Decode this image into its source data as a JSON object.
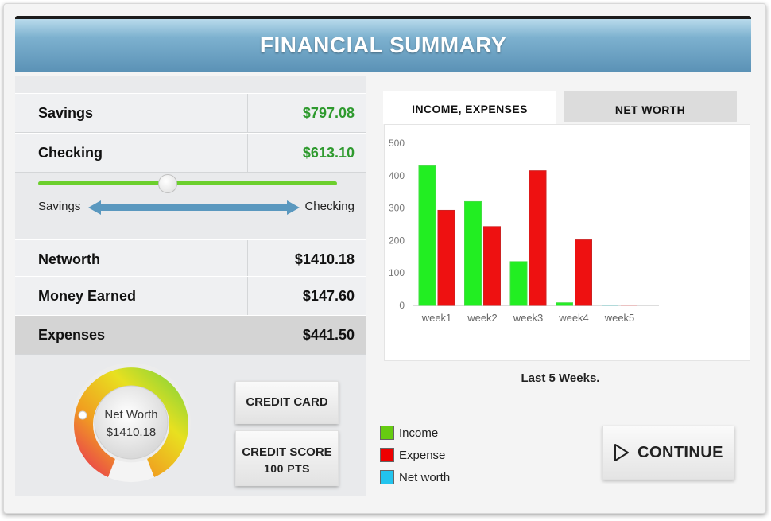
{
  "header": {
    "title": "FINANCIAL SUMMARY"
  },
  "accounts": {
    "savings": {
      "label": "Savings",
      "value": "$797.08"
    },
    "checking": {
      "label": "Checking",
      "value": "$613.10"
    }
  },
  "transfer_slider": {
    "left_label": "Savings",
    "right_label": "Checking",
    "position": 0.43
  },
  "summary": {
    "networth": {
      "label": "Networth",
      "value": "$1410.18"
    },
    "money_earned": {
      "label": "Money Earned",
      "value": "$147.60"
    },
    "expenses": {
      "label": "Expenses",
      "value": "$441.50"
    }
  },
  "gauge": {
    "label": "Net Worth",
    "value": "$1410.18"
  },
  "buttons": {
    "credit_card": "CREDIT CARD",
    "credit_score_label": "CREDIT SCORE",
    "credit_score_value": "100 PTS",
    "continue": "CONTINUE"
  },
  "tabs": {
    "active": "INCOME, EXPENSES",
    "inactive": "NET WORTH"
  },
  "chart_caption": "Last 5 Weeks.",
  "legend": [
    {
      "label": "Income",
      "color": "#66cc11"
    },
    {
      "label": "Expense",
      "color": "#ee0000"
    },
    {
      "label": "Net worth",
      "color": "#22c4ee"
    }
  ],
  "colors": {
    "accent_green": "#2e9a2e",
    "header_blue": "#5b92b6",
    "income": "#22ee22",
    "expense": "#ee1111"
  },
  "chart_data": {
    "type": "bar",
    "categories": [
      "week1",
      "week2",
      "week3",
      "week4",
      "week5"
    ],
    "series": [
      {
        "name": "Income",
        "values": [
          430,
          320,
          135,
          8,
          2
        ]
      },
      {
        "name": "Expense",
        "values": [
          293,
          243,
          415,
          202,
          2
        ]
      }
    ],
    "ylim": [
      0,
      500
    ],
    "yticks": [
      "0",
      "100",
      "200",
      "300",
      "400",
      "500"
    ],
    "grid": false
  }
}
